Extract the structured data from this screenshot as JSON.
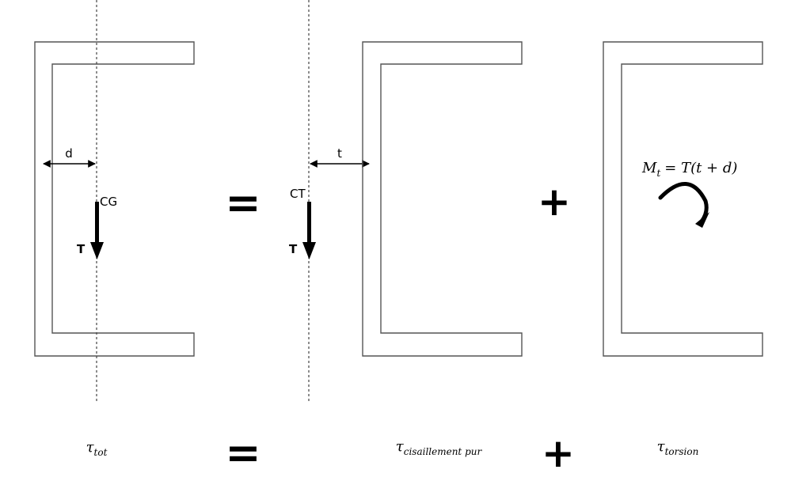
{
  "labels": {
    "d": "d",
    "t": "t",
    "cg": "CG",
    "ct": "CT",
    "force_left": "T",
    "force_middle": "T"
  },
  "operators": {
    "equals": "=",
    "plus": "+"
  },
  "moment": {
    "lhs_symbol": "M",
    "lhs_sub": "t",
    "rhs": "= T(t + d)"
  },
  "bottom_terms": {
    "tot": {
      "symbol": "τ",
      "sub": "tot"
    },
    "shear": {
      "symbol": "τ",
      "sub": "cisaillement pur"
    },
    "torsion": {
      "symbol": "τ",
      "sub": "torsion"
    }
  },
  "colors": {
    "line": "#555555",
    "ink": "#000000"
  }
}
